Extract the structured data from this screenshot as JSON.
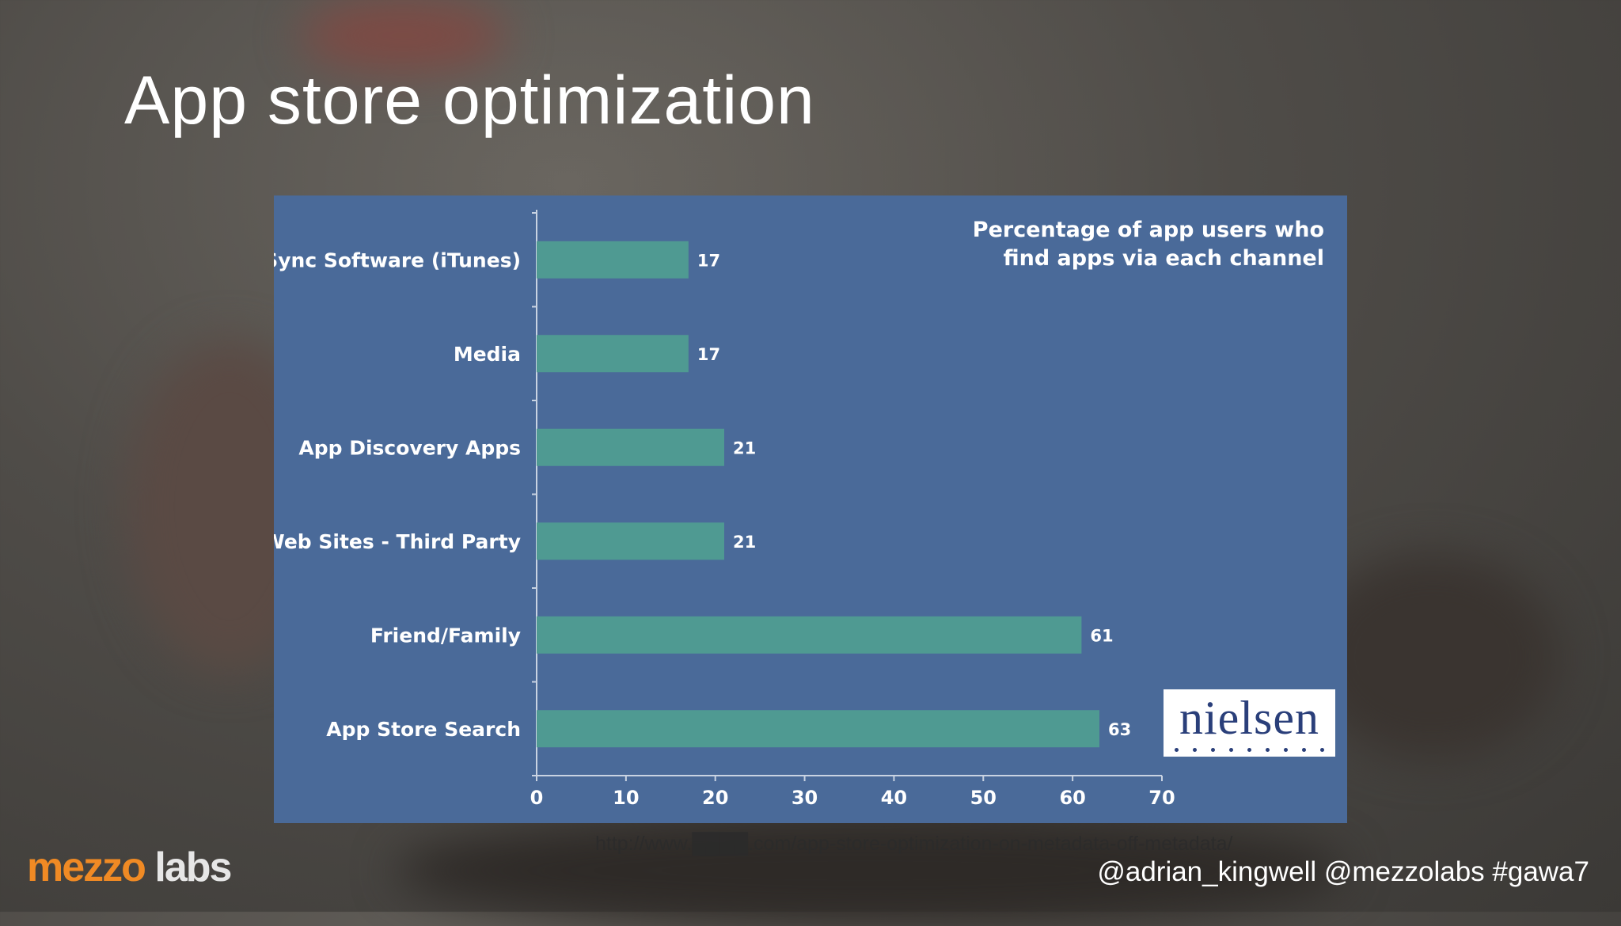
{
  "slide": {
    "title": "App store optimization",
    "source_url": "http://www.████.com/app-store-optimization-on-metadata-off-metadata/",
    "handles": "@adrian_kingwell @mezzolabs #gawa7",
    "logo": {
      "part1": "mez",
      "part2": "zo",
      "part3": " labs"
    }
  },
  "colors": {
    "panel": "#4a6a99",
    "bar": "#4f9a92",
    "logo_orange": "#f08a24"
  },
  "chart_data": {
    "type": "bar",
    "orientation": "horizontal",
    "title_lines": [
      "Percentage of app users who",
      "find apps via each channel"
    ],
    "categories": [
      "Sync Software (iTunes)",
      "Media",
      "App Discovery Apps",
      "Web Sites - Third Party",
      "Friend/Family",
      "App Store Search"
    ],
    "values": [
      17,
      17,
      21,
      21,
      61,
      63
    ],
    "xlim": [
      0,
      70
    ],
    "xticks": [
      0,
      10,
      20,
      30,
      40,
      50,
      60,
      70
    ],
    "grid": false,
    "badge": "nielsen"
  }
}
